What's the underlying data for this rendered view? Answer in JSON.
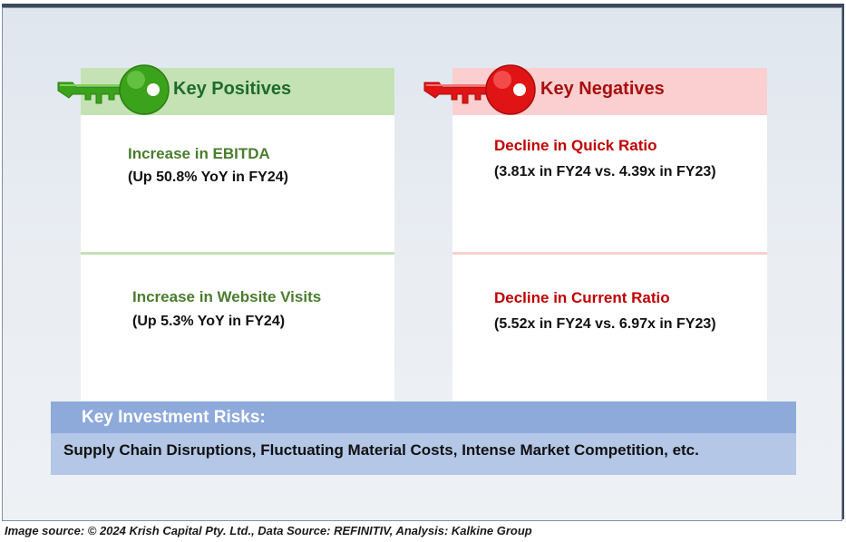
{
  "positives": {
    "heading": "Key Positives",
    "items": [
      {
        "title": "Increase in EBITDA",
        "detail": "(Up 50.8% YoY in FY24)"
      },
      {
        "title": "Increase in Website Visits",
        "detail": "(Up 5.3% YoY in FY24)"
      }
    ],
    "icon": "green-key-icon"
  },
  "negatives": {
    "heading": "Key Negatives",
    "items": [
      {
        "title": "Decline in Quick Ratio",
        "detail": "(3.81x in FY24 vs. 4.39x in FY23)"
      },
      {
        "title": "Decline in Current Ratio",
        "detail": "(5.52x in FY24 vs. 6.97x in FY23)"
      }
    ],
    "icon": "red-key-icon"
  },
  "risks": {
    "heading": "Key Investment Risks:",
    "text": "Supply Chain Disruptions, Fluctuating Material Costs, Intense Market Competition, etc."
  },
  "source": "Image source: © 2024 Krish Capital Pty. Ltd., Data Source: REFINITIV, Analysis: Kalkine Group",
  "colors": {
    "positive_header": "#c4e2b4",
    "negative_header": "#fbcfcf",
    "positive_title": "#4a7d2d",
    "negative_title": "#c00000",
    "risk_header": "#8eaadb",
    "risk_body": "#b4c7e7"
  }
}
